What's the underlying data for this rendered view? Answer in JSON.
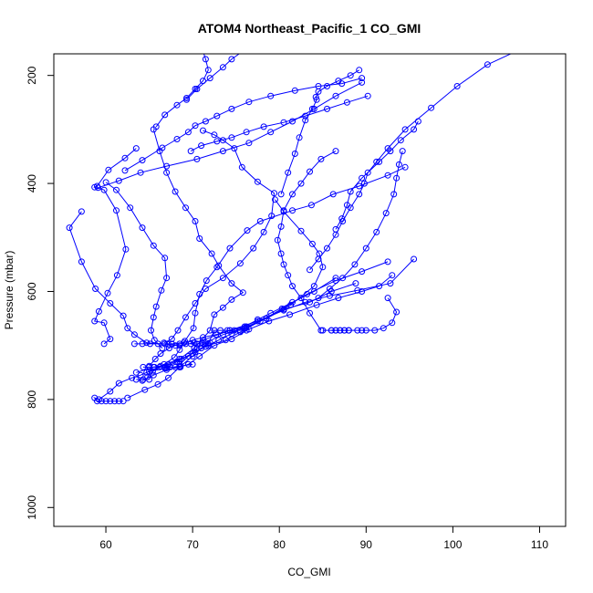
{
  "chart_data": {
    "type": "line",
    "title": "ATOM4 Northeast_Pacific_1 CO_GMI",
    "xlabel": "CO_GMI",
    "ylabel": "Pressure (mbar)",
    "xlim": [
      54,
      113
    ],
    "ylim": [
      1035,
      160
    ],
    "y_inverted": true,
    "grid": false,
    "xticks": [
      60,
      70,
      80,
      90,
      100,
      110
    ],
    "yticks": [
      200,
      400,
      600,
      800,
      1000
    ],
    "xtick_labels": [
      "60",
      "70",
      "80",
      "90",
      "100",
      "110"
    ],
    "ytick_labels": [
      "200",
      "400",
      "600",
      "800",
      "1000"
    ],
    "series_color": "#0000ff",
    "marker": "open-circle",
    "series": [
      {
        "x": [
          62,
          61.5,
          61,
          60.5,
          60,
          59.5,
          59,
          58.7,
          59.2,
          60.5,
          61.5,
          63,
          64,
          65,
          67,
          68.5,
          70
        ],
        "y": [
          803,
          803,
          803,
          803,
          803,
          803,
          803,
          797,
          800,
          785,
          770,
          760,
          755,
          748,
          742,
          738,
          735
        ]
      },
      {
        "x": [
          62.5,
          64.5,
          66,
          67.2,
          68.5,
          70,
          71,
          72
        ],
        "y": [
          797,
          782,
          772,
          760,
          740,
          720,
          705,
          695
        ]
      },
      {
        "x": [
          59.8,
          60.5,
          59.8,
          58.7,
          59.2,
          60.2,
          61.3,
          62.3,
          61.2,
          59.8,
          58.7,
          59,
          60.3,
          62.2,
          63.5
        ],
        "y": [
          697,
          688,
          658,
          655,
          637,
          603,
          570,
          522,
          450,
          412,
          407,
          405,
          375,
          353,
          335
        ]
      },
      {
        "x": [
          57.2,
          55.8,
          57.2,
          58.8,
          60.5,
          62,
          62.5,
          63.3,
          64.7,
          67.2,
          68.5,
          70.2,
          71.2,
          74.3,
          77.5,
          80.5,
          83,
          85.8,
          89,
          92.8,
          95.5
        ],
        "y": [
          452,
          482,
          545,
          595,
          622,
          645,
          668,
          680,
          695,
          698,
          700,
          695,
          690,
          672,
          655,
          635,
          620,
          608,
          598,
          585,
          540
        ]
      },
      {
        "x": [
          65,
          65.7,
          66.3,
          67.3,
          68,
          69,
          70,
          71.2,
          72.7,
          74.3,
          76.2,
          78.5,
          80.5,
          83.5,
          86,
          88.8
        ],
        "y": [
          738,
          725,
          715,
          705,
          700,
          695,
          690,
          685,
          680,
          672,
          665,
          650,
          633,
          620,
          600,
          585
        ]
      },
      {
        "x": [
          64.2,
          65.5,
          67,
          68.5,
          69.5,
          70.8,
          72.5,
          74.5,
          76.5,
          78.8,
          81.2,
          84.3,
          86.8,
          89.5,
          91.5,
          93
        ],
        "y": [
          765,
          755,
          745,
          740,
          735,
          720,
          700,
          688,
          670,
          655,
          643,
          625,
          612,
          600,
          590,
          570
        ]
      },
      {
        "x": [
          66.7,
          67.6,
          68.3,
          69.2,
          70.3,
          71.5,
          73.5,
          75.5,
          77,
          78.2,
          79.1,
          79.4,
          77.5,
          75.7,
          74.8,
          73.5,
          72.5,
          71.2
        ],
        "y": [
          695,
          688,
          672,
          648,
          622,
          595,
          575,
          548,
          520,
          490,
          460,
          418,
          397,
          370,
          335,
          320,
          310,
          302
        ]
      },
      {
        "x": [
          68.5,
          69.5,
          70.5,
          71.5,
          73.5,
          76,
          78.5,
          81.3,
          84,
          85,
          84.6,
          83.8,
          82.5,
          80.5,
          79.5
        ],
        "y": [
          735,
          720,
          705,
          695,
          680,
          668,
          650,
          625,
          590,
          555,
          530,
          512,
          488,
          452,
          430
        ]
      },
      {
        "x": [
          63.5,
          65.5,
          67.2,
          68.7,
          70.3,
          71.8,
          73.8,
          75.5,
          77.8,
          80.3,
          83.2,
          86.5,
          89.5,
          92.5
        ],
        "y": [
          750,
          740,
          735,
          725,
          712,
          700,
          690,
          675,
          655,
          632,
          605,
          580,
          563,
          545
        ]
      },
      {
        "x": [
          64.7,
          66.3,
          68.5,
          70.2,
          72,
          72.5,
          73.5,
          74.5,
          75.8,
          74.5,
          73,
          72.2,
          70.8,
          70.3,
          69.2,
          68,
          67,
          66.2,
          65.5
        ],
        "y": [
          750,
          738,
          725,
          705,
          672,
          643,
          630,
          615,
          602,
          585,
          552,
          530,
          502,
          470,
          445,
          415,
          380,
          340,
          300
        ]
      },
      {
        "x": [
          64.8,
          65.4,
          66.7,
          67.9,
          68.5,
          69.1,
          70.1,
          70.3,
          70.8,
          71.6,
          72.8,
          74.3,
          76.3,
          77.8,
          81.5,
          83.7,
          86.2,
          89.2,
          92.5,
          94.5
        ],
        "y": [
          758,
          748,
          735,
          722,
          708,
          692,
          668,
          640,
          605,
          580,
          555,
          520,
          487,
          470,
          450,
          440,
          420,
          405,
          385,
          370
        ]
      },
      {
        "x": [
          66.5,
          65.6,
          65.2,
          65.5,
          65.8,
          66.4,
          67,
          66.8,
          65.5,
          64.2,
          62.8,
          61.2,
          60
        ],
        "y": [
          705,
          690,
          672,
          648,
          628,
          598,
          575,
          538,
          515,
          482,
          445,
          412,
          398
        ]
      },
      {
        "x": [
          66.8,
          68.2,
          70,
          71.5,
          73,
          74.5,
          76,
          77.5,
          79,
          81.5,
          84,
          86.5
        ],
        "y": [
          742,
          730,
          715,
          702,
          690,
          678,
          665,
          652,
          640,
          620,
          600,
          575
        ]
      },
      {
        "x": [
          85,
          86,
          86.5,
          87,
          87.5,
          88,
          89,
          89.5,
          90,
          91,
          92,
          93,
          93.5,
          92.5
        ],
        "y": [
          672,
          672,
          672,
          672,
          672,
          672,
          672,
          672,
          672,
          672,
          668,
          658,
          638,
          612
        ]
      },
      {
        "x": [
          84.8,
          83.5,
          82.5,
          81.5,
          81,
          80.5,
          80.2,
          79.8,
          80.2,
          80.5,
          81.5,
          82.5,
          83.5,
          84.8,
          86.5
        ],
        "y": [
          672,
          640,
          612,
          590,
          570,
          550,
          530,
          505,
          480,
          450,
          420,
          400,
          378,
          355,
          340
        ]
      },
      {
        "x": [
          83.5,
          84.5,
          85.5,
          86.5,
          87.3,
          88.2,
          89.2,
          89.8,
          90.2,
          91.2,
          92.5,
          94.5,
          97.5,
          100.5,
          104,
          108
        ],
        "y": [
          560,
          540,
          520,
          495,
          470,
          445,
          420,
          400,
          380,
          360,
          335,
          300,
          260,
          220,
          180,
          150
        ]
      },
      {
        "x": [
          86.5,
          87.2,
          87.8,
          88.2,
          89.5,
          91.5,
          92.8,
          94,
          95.5,
          96
        ],
        "y": [
          485,
          465,
          440,
          415,
          390,
          360,
          340,
          320,
          300,
          285
        ]
      },
      {
        "x": [
          84.5,
          85.8,
          87.3,
          88.7,
          90,
          91.2,
          92.3,
          93.2,
          93.5,
          93.8,
          94.2
        ],
        "y": [
          612,
          595,
          575,
          550,
          520,
          490,
          455,
          420,
          390,
          365,
          340
        ]
      },
      {
        "x": [
          80.2,
          81,
          81.8,
          82.3,
          83,
          83.8,
          84.3,
          84.2,
          84.5,
          85.5,
          86.8,
          88.2,
          89.2
        ],
        "y": [
          420,
          380,
          345,
          315,
          283,
          262,
          245,
          240,
          230,
          220,
          210,
          200,
          190
        ]
      },
      {
        "x": [
          59.1,
          61.5,
          64,
          67,
          70.5,
          73.5,
          76.5,
          79,
          81.5,
          84,
          86.5,
          89.5
        ],
        "y": [
          408,
          395,
          380,
          368,
          355,
          340,
          325,
          305,
          285,
          262,
          238,
          213
        ]
      },
      {
        "x": [
          62.2,
          64.2,
          66.5,
          68.2,
          69.5,
          70.3,
          71.5,
          72.8,
          74.5,
          76.5,
          79,
          81.8,
          84.5,
          87.2,
          89.5
        ],
        "y": [
          376,
          357,
          334,
          318,
          305,
          293,
          285,
          275,
          262,
          249,
          238,
          228,
          220,
          215,
          205
        ]
      },
      {
        "x": [
          65.8,
          66.8,
          68.2,
          69.3,
          70.3,
          71.2,
          71.8,
          71.5,
          71.2,
          70.8,
          71,
          71.5
        ],
        "y": [
          295,
          273,
          255,
          242,
          225,
          210,
          190,
          170,
          155,
          140,
          125,
          110
        ]
      },
      {
        "x": [
          69.3,
          70.5,
          72,
          73.5,
          74.5,
          75.8,
          77.5,
          79.5,
          81.8,
          83.5,
          85.5
        ],
        "y": [
          245,
          225,
          205,
          185,
          170,
          155,
          145,
          140,
          135,
          130,
          125
        ]
      },
      {
        "x": [
          69.8,
          71,
          72.8,
          74.5,
          76.2,
          78.2,
          80.5,
          83,
          85.5,
          87.8,
          90.2
        ],
        "y": [
          340,
          330,
          322,
          315,
          305,
          295,
          287,
          275,
          262,
          250,
          238
        ]
      },
      {
        "x": [
          63.3,
          64.2,
          65.1,
          66,
          66.8,
          67.6,
          68.5
        ],
        "y": [
          697,
          697,
          697,
          697,
          697,
          697,
          697
        ]
      },
      {
        "x": [
          69.2,
          69.8,
          70.5,
          71.2,
          71.8,
          72.5,
          73.2,
          74,
          74.8,
          75.5,
          76.2
        ],
        "y": [
          697,
          697,
          697,
          697,
          697,
          672,
          672,
          672,
          672,
          672,
          672
        ]
      },
      {
        "x": [
          64.3,
          65,
          65.6,
          66.2,
          66.8,
          67.4,
          68,
          68.6
        ],
        "y": [
          740,
          740,
          740,
          740,
          740,
          740,
          740,
          740
        ]
      },
      {
        "x": [
          63.5,
          64.3,
          65
        ],
        "y": [
          763,
          763,
          763
        ]
      },
      {
        "x": [
          86,
          86.5,
          87,
          87.5,
          88
        ],
        "y": [
          672,
          672,
          672,
          672,
          672
        ]
      }
    ]
  }
}
